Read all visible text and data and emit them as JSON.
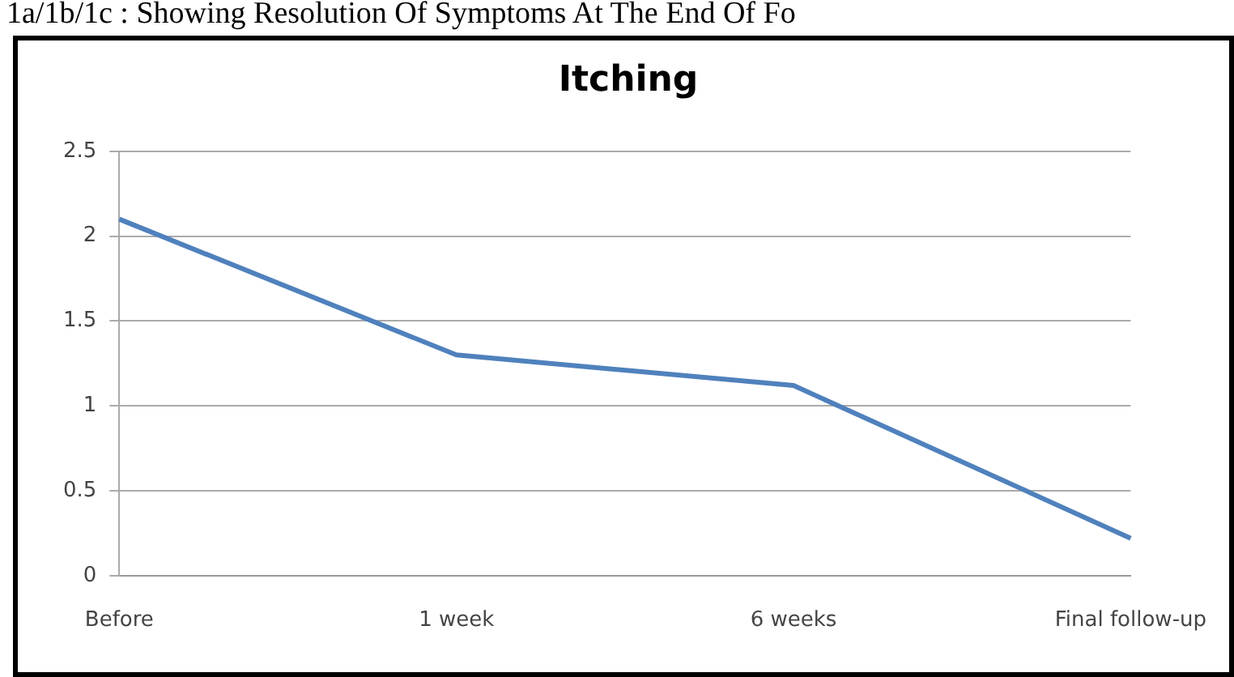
{
  "chart_data": {
    "type": "line",
    "title": "Itching",
    "annotations": [
      "1a/1b/1c : Showing Resolution Of Symptoms At The End Of Fo"
    ],
    "categories": [
      "Before",
      "1 week",
      "6 weeks",
      "Final follow-up"
    ],
    "series": [
      {
        "color": "#4f81bd",
        "values": [
          2.1,
          1.3,
          1.12,
          0.22
        ]
      }
    ],
    "ylim": [
      0,
      2.5
    ],
    "yticks": [
      0,
      0.5,
      1,
      1.5,
      2,
      2.5
    ],
    "grid": "y",
    "legend": false,
    "marker": "none"
  }
}
